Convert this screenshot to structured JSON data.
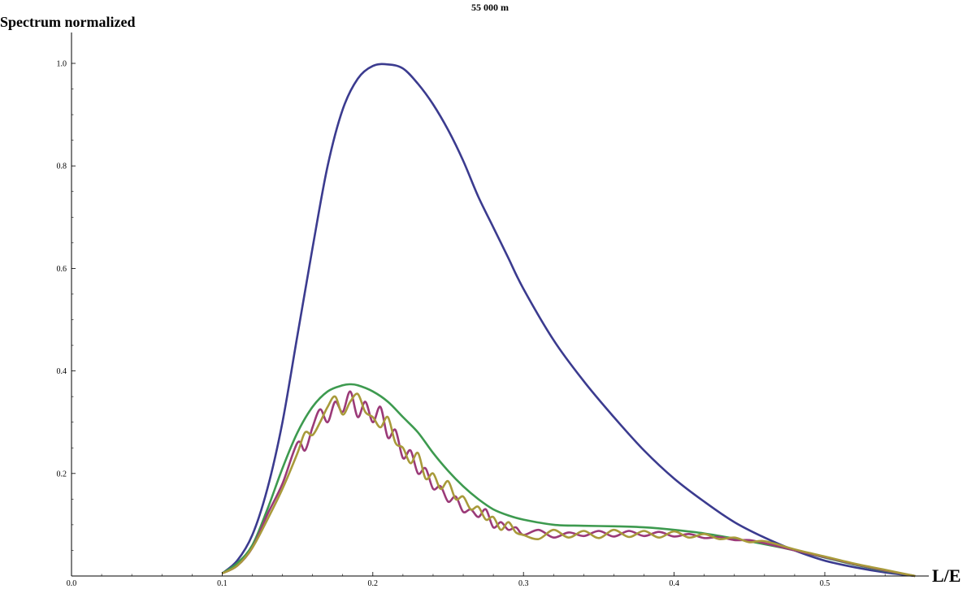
{
  "chart_data": {
    "type": "line",
    "title": "55 000 m",
    "xlabel": "L/E",
    "ylabel": "Spectrum normalized",
    "xlim": [
      0.0,
      0.56
    ],
    "ylim": [
      0.0,
      1.0
    ],
    "x_ticks": [
      "0.0",
      "0.1",
      "0.2",
      "0.3",
      "0.4",
      "0.5"
    ],
    "y_ticks": [
      "0.2",
      "0.4",
      "0.6",
      "0.8",
      "1.0"
    ],
    "legend": "none",
    "grid": false,
    "series": [
      {
        "color": "#3b3b8f",
        "x": [
          0.1,
          0.11,
          0.12,
          0.13,
          0.14,
          0.15,
          0.16,
          0.17,
          0.18,
          0.19,
          0.2,
          0.21,
          0.22,
          0.23,
          0.24,
          0.25,
          0.26,
          0.27,
          0.28,
          0.29,
          0.3,
          0.32,
          0.34,
          0.36,
          0.38,
          0.4,
          0.42,
          0.44,
          0.46,
          0.48,
          0.5,
          0.52,
          0.54,
          0.56
        ],
        "values": [
          0.005,
          0.03,
          0.08,
          0.17,
          0.3,
          0.47,
          0.64,
          0.8,
          0.91,
          0.97,
          0.995,
          0.998,
          0.99,
          0.96,
          0.92,
          0.87,
          0.81,
          0.74,
          0.68,
          0.62,
          0.56,
          0.46,
          0.38,
          0.31,
          0.245,
          0.19,
          0.145,
          0.105,
          0.075,
          0.05,
          0.03,
          0.017,
          0.007,
          0.0
        ]
      },
      {
        "color": "#3d9a4f",
        "x": [
          0.1,
          0.11,
          0.12,
          0.13,
          0.14,
          0.15,
          0.16,
          0.17,
          0.18,
          0.185,
          0.19,
          0.2,
          0.21,
          0.22,
          0.23,
          0.24,
          0.25,
          0.26,
          0.27,
          0.28,
          0.29,
          0.3,
          0.32,
          0.34,
          0.36,
          0.38,
          0.4,
          0.42,
          0.44,
          0.46,
          0.48,
          0.5,
          0.52,
          0.54,
          0.56
        ],
        "values": [
          0.005,
          0.025,
          0.06,
          0.13,
          0.21,
          0.28,
          0.33,
          0.36,
          0.372,
          0.374,
          0.372,
          0.36,
          0.34,
          0.31,
          0.28,
          0.24,
          0.205,
          0.175,
          0.15,
          0.13,
          0.118,
          0.11,
          0.1,
          0.098,
          0.097,
          0.095,
          0.09,
          0.083,
          0.073,
          0.062,
          0.05,
          0.036,
          0.022,
          0.01,
          0.0
        ]
      },
      {
        "color": "#9b3a78",
        "x": [
          0.1,
          0.11,
          0.12,
          0.13,
          0.14,
          0.15,
          0.155,
          0.16,
          0.165,
          0.17,
          0.175,
          0.18,
          0.185,
          0.19,
          0.195,
          0.2,
          0.205,
          0.21,
          0.215,
          0.22,
          0.225,
          0.23,
          0.235,
          0.24,
          0.245,
          0.25,
          0.255,
          0.26,
          0.265,
          0.27,
          0.275,
          0.28,
          0.285,
          0.29,
          0.295,
          0.3,
          0.31,
          0.32,
          0.33,
          0.34,
          0.35,
          0.36,
          0.37,
          0.38,
          0.39,
          0.4,
          0.41,
          0.42,
          0.43,
          0.44,
          0.45,
          0.46,
          0.48,
          0.5,
          0.52,
          0.54,
          0.56
        ],
        "values": [
          0.005,
          0.02,
          0.055,
          0.12,
          0.18,
          0.26,
          0.245,
          0.29,
          0.325,
          0.3,
          0.34,
          0.32,
          0.36,
          0.31,
          0.34,
          0.3,
          0.33,
          0.27,
          0.285,
          0.23,
          0.245,
          0.2,
          0.21,
          0.17,
          0.175,
          0.145,
          0.155,
          0.125,
          0.13,
          0.115,
          0.13,
          0.095,
          0.105,
          0.09,
          0.095,
          0.08,
          0.09,
          0.075,
          0.085,
          0.078,
          0.088,
          0.077,
          0.088,
          0.078,
          0.086,
          0.077,
          0.082,
          0.074,
          0.076,
          0.07,
          0.07,
          0.064,
          0.05,
          0.037,
          0.023,
          0.011,
          0.0
        ]
      },
      {
        "color": "#a89a3a",
        "x": [
          0.1,
          0.11,
          0.12,
          0.13,
          0.14,
          0.15,
          0.155,
          0.16,
          0.165,
          0.17,
          0.175,
          0.18,
          0.185,
          0.19,
          0.195,
          0.2,
          0.205,
          0.21,
          0.215,
          0.22,
          0.225,
          0.23,
          0.235,
          0.24,
          0.245,
          0.25,
          0.255,
          0.26,
          0.265,
          0.27,
          0.275,
          0.28,
          0.285,
          0.29,
          0.295,
          0.3,
          0.31,
          0.32,
          0.33,
          0.34,
          0.35,
          0.36,
          0.37,
          0.38,
          0.39,
          0.4,
          0.41,
          0.42,
          0.43,
          0.44,
          0.45,
          0.46,
          0.48,
          0.5,
          0.52,
          0.54,
          0.56
        ],
        "values": [
          0.005,
          0.02,
          0.055,
          0.11,
          0.17,
          0.24,
          0.28,
          0.275,
          0.3,
          0.33,
          0.35,
          0.315,
          0.34,
          0.355,
          0.32,
          0.31,
          0.29,
          0.31,
          0.26,
          0.25,
          0.22,
          0.24,
          0.19,
          0.2,
          0.17,
          0.185,
          0.15,
          0.155,
          0.13,
          0.135,
          0.11,
          0.115,
          0.09,
          0.105,
          0.085,
          0.08,
          0.072,
          0.09,
          0.075,
          0.088,
          0.074,
          0.09,
          0.076,
          0.088,
          0.075,
          0.087,
          0.075,
          0.082,
          0.072,
          0.075,
          0.066,
          0.068,
          0.052,
          0.038,
          0.024,
          0.012,
          0.0
        ]
      }
    ]
  }
}
